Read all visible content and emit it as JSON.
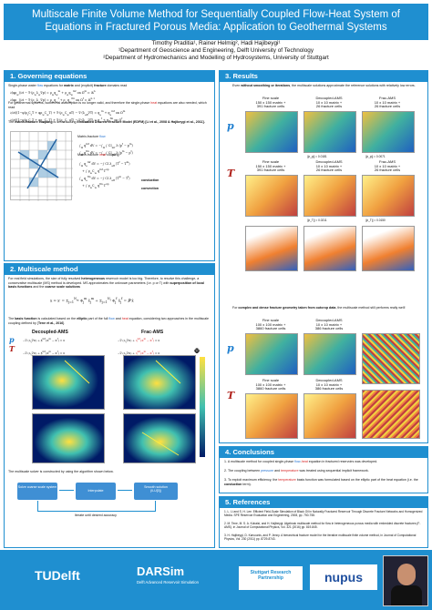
{
  "title_l1": "Multiscale Finite Volume Method for Sequentially Coupled Flow-Heat System of",
  "title_l2": "Equations in Fractured Porous Media: Application to Geothermal Systems",
  "authors": "Timothy Praditia¹, Rainer Helmig², Hadi Hajibeygi¹",
  "aff1": "¹Department of Geoscience and Engineering, Delft University of Technology",
  "aff2": "²Department of Hydromechanics and Modelling of Hydrosystems, University of Stuttgart",
  "s1": {
    "title": "1. Governing equations",
    "p1a": "Single-phase water ",
    "p1b": "flow",
    " p1c": "",
    "p1c2": " equations for ",
    "p1d": "matrix",
    " p1e": "",
    "p1e2": " and (explicit) ",
    "p1f": "fracture",
    "p1g": " domains read",
    "p2": "For geothermal systems, isothermal assumption is no longer valid, and therefore the single-phase ",
    "p2b": "heat",
    "p2c": " equations are also needed, which read",
    "p3a": "The ",
    "p3b": "matrix-fracture coupling",
    "p3c": " is defined using ",
    "p3d": "Embedded Discrete Fracture Model (EDFM) [Li et al., 2008 & Hajibeygi et al., 2011].",
    "mf_flow": "Matrix-fracture ",
    "mf_flow_b": "flow",
    " mf_flow_c": "",
    " mf_flow_c2": " coupling:",
    "mf_heat": "Matrix-fracture ",
    "mf_heat_b": "heat",
    "mf_heat_c": " coupling:",
    "conduction": "conduction",
    "convection": "convection"
  },
  "s2": {
    "title": "2. Multiscale method",
    "p1": "For real field simulations, the size of fully resolved ",
    "p1b": "heterogeneous",
    "p1c": " reservoir model is too big. Therefore, to resolve this challenge, a conservative multiscale (MS) method is developed. MS approximates the unknown parameters (i.e. p or T) with ",
    "p1d": "superposition of local basis functions",
    "p1e": " and the ",
    "p1f": "coarse scale solutions",
    "p2a": "The ",
    "p2b": "basis function",
    "p2c": " is calculated based on the ",
    "p2d": "elliptic",
    "p2e": " part of the full ",
    "p2f": "flow",
    "p2g": " and ",
    "p2h": "heat",
    "p2i": " equation, considering two approaches in the multiscale coupling defined by [",
    "p2j": "Tene et al., 2016",
    "p2k": "].",
    "col1": "Decoupled-AMS",
    "col2": "Frac-AMS",
    "phi": "Φ",
    "solver": "The multiscale solver is constructed by using the algorithm shown below.",
    "box1": "Solve coarse scale system",
    "box2": "Interpolate",
    "box3": "Smooth solution",
    "box3b": "(ILU[0])",
    "iter": "Iterate until desired accuracy"
  },
  "s3": {
    "title": "3. Results",
    "p1a": "Even ",
    "p1b": "without smoothing or iterations",
    ", p1c": "",
    "p1c2": ", the multiscale solutions approximate the reference solutions with relatively low errors.",
    "h_fine": "Fine scale",
    "h_fine2": "150 x 150 matrix +",
    "h_fine3": "391 fracture cells",
    "h_dec": "Decoupled-AMS",
    "h_dec2": "10 x 10 matrix +",
    "h_dec3": "26 fracture cells",
    "h_frac": "Frac-AMS",
    "h_frac2": "10 x 10 matrix +",
    "h_frac3": "26 fracture cells",
    "err1": "||ε_p|| = 0.0181",
    "err2": "||ε_p|| = 0.0071",
    "err3": "||ε_T|| = 0.0211",
    "err4": "||ε_T|| = 0.0150",
    "p2a": "For ",
    "p2b": "complex and dense fracture geometry taken from outcrop data",
    ", p2c": "",
    "p2c2": ", the multiscale method still performs really well!",
    "h2_fine2": "100 x 100 matrix +",
    "h2_fine3": "3860 fracture cells",
    "h2_dec2": "10 x 10 matrix +",
    "h2_dec3": "386 fracture cells",
    "p": "p",
    "T": "T"
  },
  "s4": {
    "title": "4. Conclusions",
    "c1a": "A multiscale method for coupled single-phase ",
    "c1b": "flow",
    "c1c": "-",
    "c1d": "heat",
    "c1e": " equation in fractured reservoirs was developed.",
    "c2a": "The coupling between ",
    "c2b": "pressure",
    "c2c": " and ",
    "c2d": "temperature",
    "c2e": " was treated using sequential implicit framework.",
    "c3a": "To exploit maximum efficiency, the ",
    "c3b": "temperature",
    "c3c": " basis function was formulated based on the elliptic part of the heat equation (i.e. the ",
    "c3d": "conduction",
    "c3e": " term)."
  },
  "s5": {
    "title": "5. References",
    "r1": "L. Li and S. H. Lee. Efficient Field-Scale Simulation of Black Oil in Naturally Fractured Reservoir Through Discrete Fracture Networks and Homogenized Media. SPE Reservoir Evaluation and Engineering, 2008, pp. 750-758.",
    "r2": "M. Tene, M. S. A. Kobaisi, and H. Hajibeygi. Algebraic multiscale method for flow in heterogeneous porous media with embedded discrete fractures (F-AMS). in Journal of Computational Physics, Vol. 321 (2016) pp. 819-845.",
    "r3": "H. Hajibeygi, D. Karvounis, and P. Jenny. A hierarchical fracture model for the iterative multiscale finite volume method, in Journal of Computational Physics, Vol. 230 (2011) pp. 8729-8743."
  },
  "footer": {
    "tud": "TUDelft",
    "darsim": "DARSim",
    "darsim_sub": "Delft Advanced Reservoir Simulation",
    "stuttgart": "Stuttgart Research Partnership",
    "nupus": "nupus"
  }
}
